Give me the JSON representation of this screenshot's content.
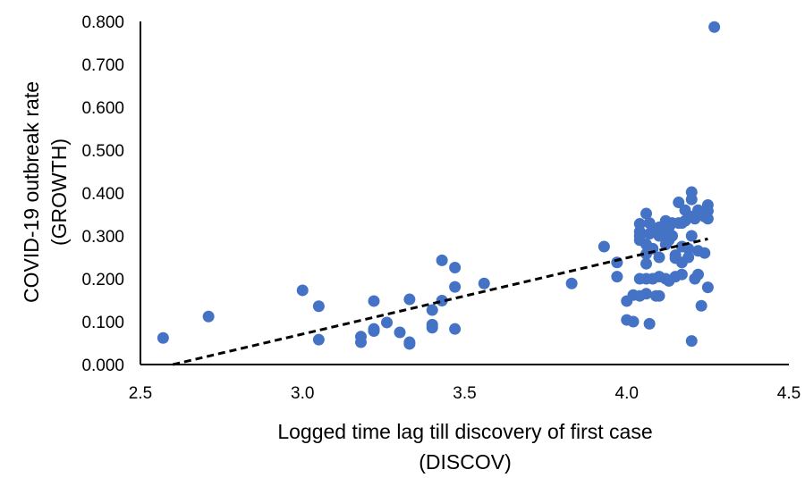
{
  "chart_data": {
    "type": "scatter",
    "title": "",
    "xlabel_lines": [
      "Logged time lag till discovery of first case",
      "(DISCOV)"
    ],
    "ylabel_lines": [
      "COVID-19 outbreak rate",
      "(GROWTH)"
    ],
    "xlim": [
      2.5,
      4.5
    ],
    "ylim": [
      0,
      0.8
    ],
    "xticks": [
      "2.5",
      "3.0",
      "3.5",
      "4.0",
      "4.5"
    ],
    "yticks": [
      "0.000",
      "0.100",
      "0.200",
      "0.300",
      "0.400",
      "0.500",
      "0.600",
      "0.700",
      "0.800"
    ],
    "grid": false,
    "marker_color": "#4472C4",
    "trendline": {
      "style": "dashed",
      "color": "#000000",
      "x": [
        2.6,
        4.25
      ],
      "y": [
        0.0,
        0.293
      ]
    },
    "points": [
      {
        "x": 2.57,
        "y": 0.062
      },
      {
        "x": 2.71,
        "y": 0.112
      },
      {
        "x": 3.0,
        "y": 0.173
      },
      {
        "x": 3.05,
        "y": 0.136
      },
      {
        "x": 3.05,
        "y": 0.058
      },
      {
        "x": 3.18,
        "y": 0.065
      },
      {
        "x": 3.18,
        "y": 0.052
      },
      {
        "x": 3.22,
        "y": 0.148
      },
      {
        "x": 3.22,
        "y": 0.083
      },
      {
        "x": 3.22,
        "y": 0.078
      },
      {
        "x": 3.26,
        "y": 0.098
      },
      {
        "x": 3.3,
        "y": 0.075
      },
      {
        "x": 3.33,
        "y": 0.152
      },
      {
        "x": 3.33,
        "y": 0.052
      },
      {
        "x": 3.33,
        "y": 0.048
      },
      {
        "x": 3.4,
        "y": 0.127
      },
      {
        "x": 3.4,
        "y": 0.093
      },
      {
        "x": 3.4,
        "y": 0.086
      },
      {
        "x": 3.43,
        "y": 0.243
      },
      {
        "x": 3.43,
        "y": 0.149
      },
      {
        "x": 3.47,
        "y": 0.226
      },
      {
        "x": 3.47,
        "y": 0.181
      },
      {
        "x": 3.47,
        "y": 0.083
      },
      {
        "x": 3.56,
        "y": 0.189
      },
      {
        "x": 3.83,
        "y": 0.189
      },
      {
        "x": 3.93,
        "y": 0.275
      },
      {
        "x": 3.97,
        "y": 0.238
      },
      {
        "x": 3.97,
        "y": 0.205
      },
      {
        "x": 4.0,
        "y": 0.148
      },
      {
        "x": 4.0,
        "y": 0.104
      },
      {
        "x": 4.02,
        "y": 0.162
      },
      {
        "x": 4.02,
        "y": 0.1
      },
      {
        "x": 4.04,
        "y": 0.328
      },
      {
        "x": 4.04,
        "y": 0.31
      },
      {
        "x": 4.04,
        "y": 0.3
      },
      {
        "x": 4.04,
        "y": 0.29
      },
      {
        "x": 4.04,
        "y": 0.2
      },
      {
        "x": 4.04,
        "y": 0.16
      },
      {
        "x": 4.06,
        "y": 0.352
      },
      {
        "x": 4.06,
        "y": 0.28
      },
      {
        "x": 4.06,
        "y": 0.258
      },
      {
        "x": 4.06,
        "y": 0.235
      },
      {
        "x": 4.06,
        "y": 0.2
      },
      {
        "x": 4.06,
        "y": 0.165
      },
      {
        "x": 4.07,
        "y": 0.33
      },
      {
        "x": 4.07,
        "y": 0.305
      },
      {
        "x": 4.07,
        "y": 0.095
      },
      {
        "x": 4.08,
        "y": 0.31
      },
      {
        "x": 4.08,
        "y": 0.27
      },
      {
        "x": 4.08,
        "y": 0.2
      },
      {
        "x": 4.09,
        "y": 0.16
      },
      {
        "x": 4.1,
        "y": 0.32
      },
      {
        "x": 4.1,
        "y": 0.3
      },
      {
        "x": 4.1,
        "y": 0.25
      },
      {
        "x": 4.1,
        "y": 0.205
      },
      {
        "x": 4.1,
        "y": 0.16
      },
      {
        "x": 4.12,
        "y": 0.335
      },
      {
        "x": 4.12,
        "y": 0.31
      },
      {
        "x": 4.12,
        "y": 0.28
      },
      {
        "x": 4.12,
        "y": 0.2
      },
      {
        "x": 4.13,
        "y": 0.32
      },
      {
        "x": 4.13,
        "y": 0.29
      },
      {
        "x": 4.13,
        "y": 0.195
      },
      {
        "x": 4.14,
        "y": 0.33
      },
      {
        "x": 4.14,
        "y": 0.3
      },
      {
        "x": 4.15,
        "y": 0.255
      },
      {
        "x": 4.15,
        "y": 0.248
      },
      {
        "x": 4.15,
        "y": 0.205
      },
      {
        "x": 4.16,
        "y": 0.378
      },
      {
        "x": 4.16,
        "y": 0.33
      },
      {
        "x": 4.17,
        "y": 0.33
      },
      {
        "x": 4.17,
        "y": 0.275
      },
      {
        "x": 4.17,
        "y": 0.238
      },
      {
        "x": 4.17,
        "y": 0.21
      },
      {
        "x": 4.18,
        "y": 0.36
      },
      {
        "x": 4.18,
        "y": 0.335
      },
      {
        "x": 4.19,
        "y": 0.27
      },
      {
        "x": 4.19,
        "y": 0.25
      },
      {
        "x": 4.2,
        "y": 0.402
      },
      {
        "x": 4.2,
        "y": 0.385
      },
      {
        "x": 4.2,
        "y": 0.345
      },
      {
        "x": 4.2,
        "y": 0.3
      },
      {
        "x": 4.2,
        "y": 0.055
      },
      {
        "x": 4.21,
        "y": 0.34
      },
      {
        "x": 4.21,
        "y": 0.2
      },
      {
        "x": 4.22,
        "y": 0.36
      },
      {
        "x": 4.22,
        "y": 0.265
      },
      {
        "x": 4.22,
        "y": 0.21
      },
      {
        "x": 4.23,
        "y": 0.35
      },
      {
        "x": 4.23,
        "y": 0.137
      },
      {
        "x": 4.24,
        "y": 0.345
      },
      {
        "x": 4.24,
        "y": 0.26
      },
      {
        "x": 4.25,
        "y": 0.372
      },
      {
        "x": 4.25,
        "y": 0.358
      },
      {
        "x": 4.25,
        "y": 0.34
      },
      {
        "x": 4.25,
        "y": 0.18
      },
      {
        "x": 4.27,
        "y": 0.787
      }
    ]
  }
}
